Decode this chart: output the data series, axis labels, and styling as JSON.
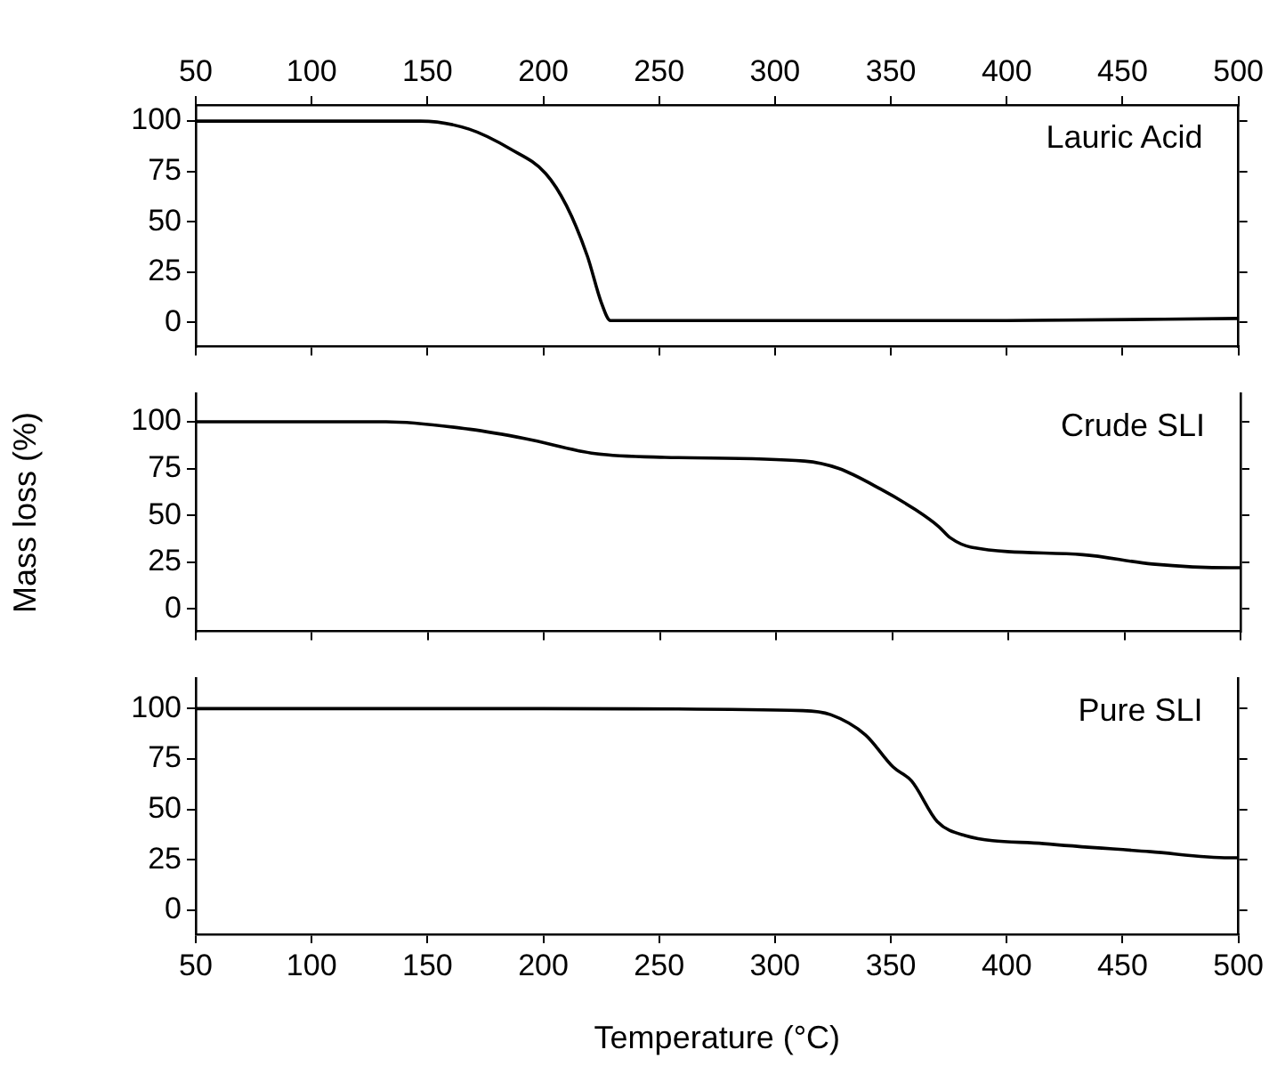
{
  "chart_data": [
    {
      "type": "line",
      "annotations": [
        "Lauric Acid"
      ],
      "x": [
        50,
        100,
        147,
        168,
        186,
        201,
        210,
        219,
        225,
        229,
        231,
        300,
        400,
        500
      ],
      "series": [
        {
          "color": "#000000",
          "values": [
            100,
            100,
            100,
            96,
            86,
            74,
            58,
            33,
            10,
            1,
            1,
            1,
            1,
            2
          ]
        }
      ],
      "xlim": [
        50,
        500
      ],
      "xticks": [
        50,
        100,
        150,
        200,
        250,
        300,
        350,
        400,
        450,
        500
      ],
      "x2lim": [
        50,
        500
      ],
      "x2ticks": [
        50,
        100,
        150,
        200,
        250,
        300,
        350,
        400,
        450,
        500
      ],
      "ylim": [
        -12,
        108
      ],
      "yticks": [
        0,
        25,
        50,
        75,
        100
      ],
      "tick_labels": "y",
      "grid": false,
      "legend": false,
      "marker": "none",
      "line_style": "solid"
    },
    {
      "type": "line",
      "ylabel": "Mass loss (%)",
      "annotations": [
        "Crude SLI"
      ],
      "x": [
        50,
        132,
        168,
        192,
        222,
        252,
        312,
        327,
        345,
        360,
        370,
        375,
        384,
        432,
        462,
        496,
        500
      ],
      "series": [
        {
          "color": "#000000",
          "values": [
            100,
            100,
            96,
            91,
            83,
            81,
            79,
            75,
            64,
            53,
            44,
            38,
            33,
            29,
            24,
            22,
            22
          ]
        }
      ],
      "xlim": [
        50,
        500
      ],
      "xticks": [
        50,
        100,
        150,
        200,
        250,
        300,
        350,
        400,
        450,
        500
      ],
      "ylim": [
        -12,
        115
      ],
      "yticks": [
        0,
        25,
        50,
        75,
        100
      ],
      "tick_labels": "y",
      "grid": false,
      "legend": false,
      "marker": "none",
      "line_style": "solid"
    },
    {
      "type": "line",
      "xlabel": "Temperature (°C)",
      "annotations": [
        "Pure SLI"
      ],
      "x": [
        50,
        200,
        312,
        324,
        339,
        351,
        359,
        370,
        382,
        416,
        462,
        496,
        500
      ],
      "series": [
        {
          "color": "#000000",
          "values": [
            100,
            100,
            99,
            97,
            87,
            71,
            64,
            44,
            37,
            33,
            29,
            26,
            26
          ]
        }
      ],
      "xlim": [
        50,
        500
      ],
      "xticks": [
        50,
        100,
        150,
        200,
        250,
        300,
        350,
        400,
        450,
        500
      ],
      "ylim": [
        -12,
        115
      ],
      "yticks": [
        0,
        25,
        50,
        75,
        100
      ],
      "grid": false,
      "legend": false,
      "marker": "none",
      "line_style": "solid"
    }
  ]
}
